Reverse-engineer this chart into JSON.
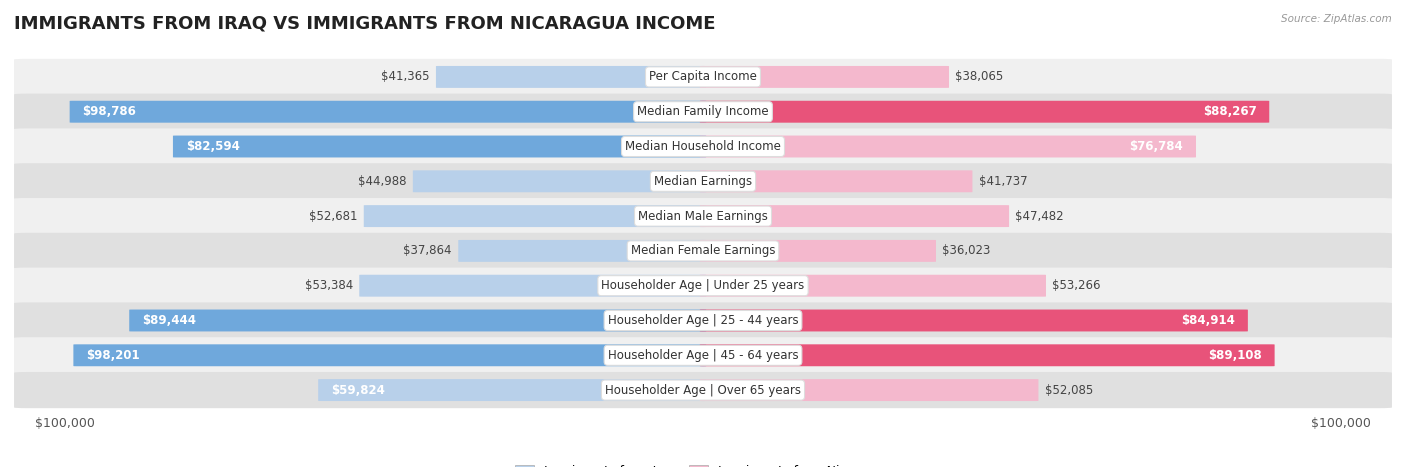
{
  "title": "IMMIGRANTS FROM IRAQ VS IMMIGRANTS FROM NICARAGUA INCOME",
  "source": "Source: ZipAtlas.com",
  "categories": [
    "Per Capita Income",
    "Median Family Income",
    "Median Household Income",
    "Median Earnings",
    "Median Male Earnings",
    "Median Female Earnings",
    "Householder Age | Under 25 years",
    "Householder Age | 25 - 44 years",
    "Householder Age | 45 - 64 years",
    "Householder Age | Over 65 years"
  ],
  "iraq_values": [
    41365,
    98786,
    82594,
    44988,
    52681,
    37864,
    53384,
    89444,
    98201,
    59824
  ],
  "nicaragua_values": [
    38065,
    88267,
    76784,
    41737,
    47482,
    36023,
    53266,
    84914,
    89108,
    52085
  ],
  "iraq_color_light": "#b8d0ea",
  "iraq_color_dark": "#6fa8dc",
  "nicaragua_color_light": "#f4b8cd",
  "nicaragua_color_dark": "#e8537a",
  "iraq_label": "Immigrants from Iraq",
  "nicaragua_label": "Immigrants from Nicaragua",
  "max_value": 100000,
  "xlabel_left": "$100,000",
  "xlabel_right": "$100,000",
  "row_bg_odd": "#f0f0f0",
  "row_bg_even": "#e0e0e0",
  "bar_height": 0.62,
  "title_fontsize": 13,
  "label_fontsize": 9,
  "value_fontsize": 8.5,
  "category_fontsize": 8.5,
  "inside_threshold": 0.55
}
